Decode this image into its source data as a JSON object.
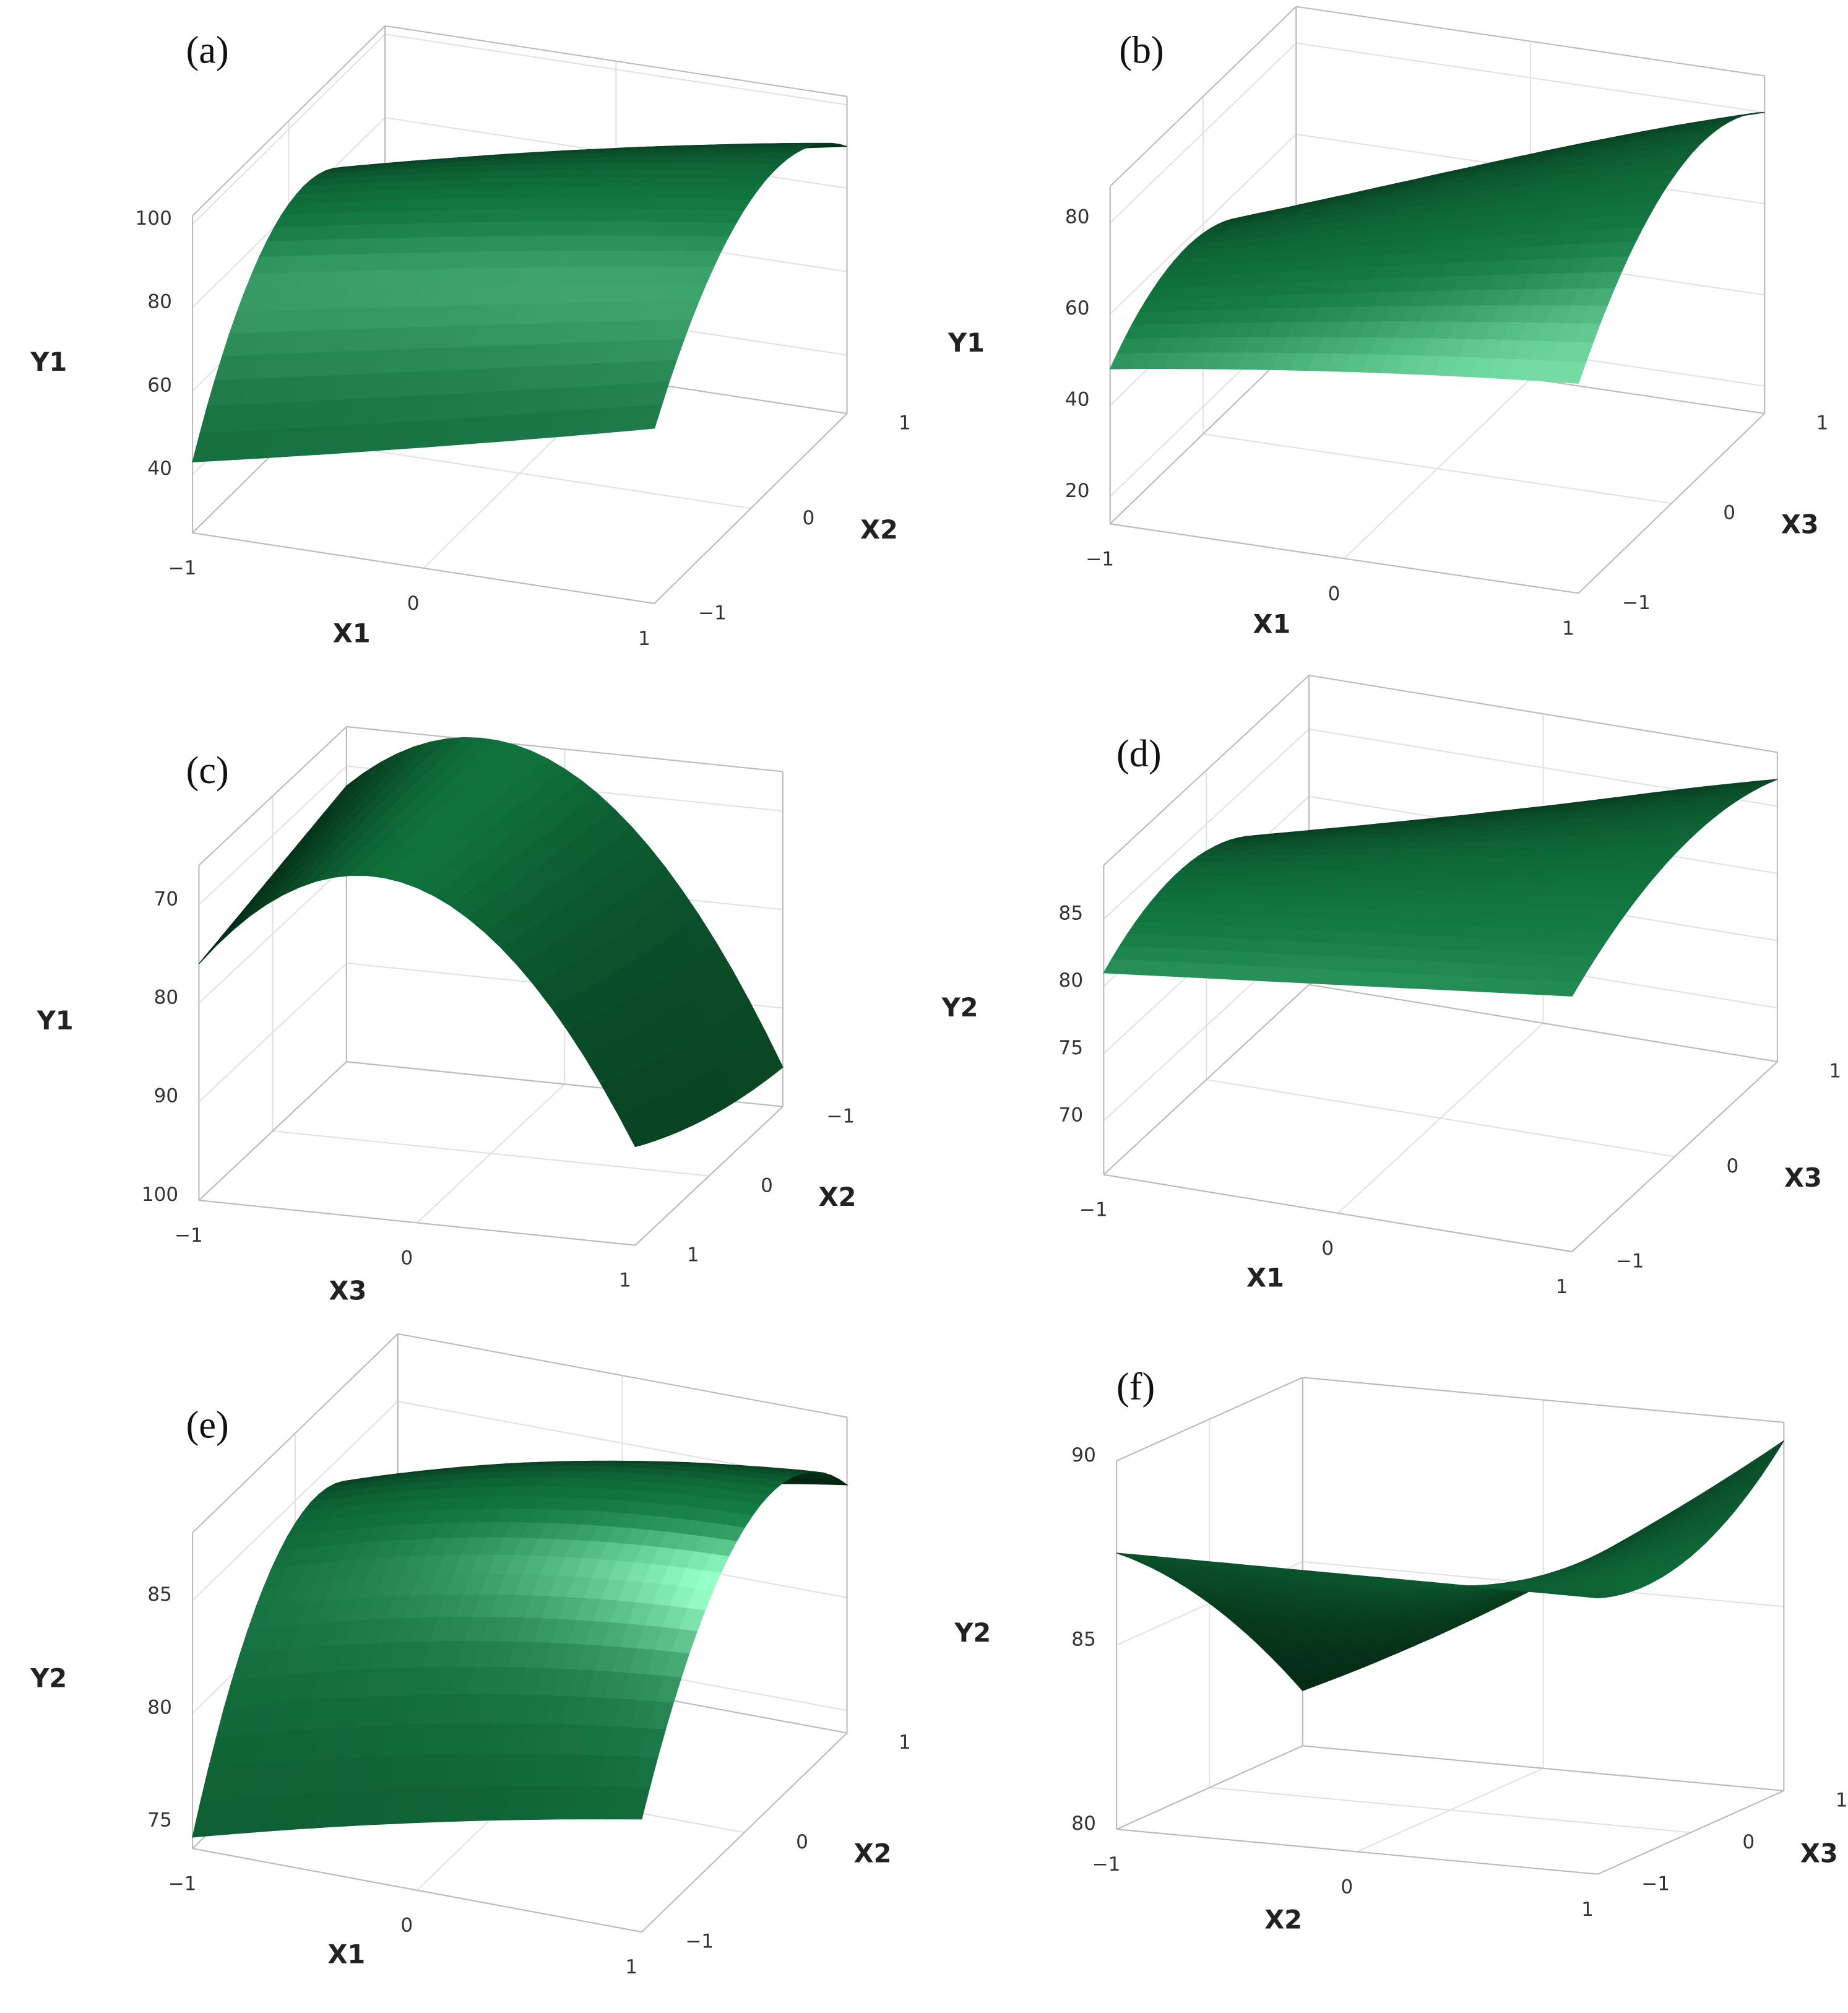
{
  "chart_data": [
    {
      "type": "surface",
      "panel_label": "(a)",
      "x_label": "X1",
      "y_label": "X2",
      "z_label": "Y1",
      "color": "#14884a",
      "xlim": [
        -1,
        1
      ],
      "ylim": [
        -1,
        1
      ],
      "zlim": [
        26,
        102
      ],
      "xticks": [
        {
          "value": -1,
          "label": "−1"
        },
        0,
        1
      ],
      "yticks": [
        {
          "value": -1,
          "label": "−1"
        },
        0,
        1
      ],
      "zticks": [
        40,
        60,
        80,
        100
      ],
      "x": [
        -1,
        0,
        1
      ],
      "y": [
        -1,
        0,
        1
      ],
      "z": [
        [
          43,
          82,
          62
        ],
        [
          55,
          92,
          78
        ],
        [
          68,
          100,
          90
        ]
      ]
    },
    {
      "type": "surface",
      "panel_label": "(b)",
      "x_label": "X1",
      "y_label": "X3",
      "z_label": "Y1",
      "color": "#14884a",
      "xlim": [
        -1,
        1
      ],
      "ylim": [
        -1,
        1
      ],
      "zlim": [
        14,
        88
      ],
      "xticks": [
        {
          "value": -1,
          "label": "−1"
        },
        0,
        1
      ],
      "yticks": [
        {
          "value": -1,
          "label": "−1"
        },
        0,
        1
      ],
      "zticks": [
        20,
        40,
        60,
        80
      ],
      "x": [
        -1,
        0,
        1
      ],
      "y": [
        -1,
        0,
        1
      ],
      "z": [
        [
          48,
          58,
          38
        ],
        [
          55,
          72,
          62
        ],
        [
          60,
          85,
          80
        ]
      ]
    },
    {
      "type": "surface",
      "panel_label": "(c)",
      "x_label": "X3",
      "y_label": "X2",
      "z_label": "Y1",
      "color": "#14884a",
      "xlim": [
        -1,
        1
      ],
      "ylim": [
        1,
        -1
      ],
      "zlim": [
        100,
        66
      ],
      "xticks": [
        {
          "value": -1,
          "label": "−1"
        },
        0,
        1
      ],
      "yticks": [
        {
          "value": -1,
          "label": "−1"
        },
        0,
        1
      ],
      "zticks": [
        70,
        80,
        90,
        100
      ],
      "x": [
        -1,
        0,
        1
      ],
      "y": [
        -1,
        0,
        1
      ],
      "z": [
        [
          72,
          74,
          76
        ],
        [
          68,
          67,
          66
        ],
        [
          96,
          94,
          90
        ]
      ]
    },
    {
      "type": "surface",
      "panel_label": "(d)",
      "x_label": "X1",
      "y_label": "X3",
      "z_label": "Y2",
      "color": "#14884a",
      "xlim": [
        -1,
        1
      ],
      "ylim": [
        -1,
        1
      ],
      "zlim": [
        66,
        89
      ],
      "xticks": [
        {
          "value": -1,
          "label": "−1"
        },
        0,
        1
      ],
      "yticks": [
        {
          "value": -1,
          "label": "−1"
        },
        0,
        1
      ],
      "zticks": [
        70,
        75,
        80,
        85
      ],
      "x": [
        -1,
        0,
        1
      ],
      "y": [
        -1,
        0,
        1
      ],
      "z": [
        [
          81,
          83,
          76
        ],
        [
          83,
          86,
          82
        ],
        [
          85,
          88.5,
          87
        ]
      ]
    },
    {
      "type": "surface",
      "panel_label": "(e)",
      "x_label": "X1",
      "y_label": "X2",
      "z_label": "Y2",
      "color": "#14884a",
      "xlim": [
        -1,
        1
      ],
      "ylim": [
        -1,
        1
      ],
      "zlim": [
        74,
        88
      ],
      "xticks": [
        {
          "value": -1,
          "label": "−1"
        },
        0,
        1
      ],
      "yticks": [
        {
          "value": -1,
          "label": "−1"
        },
        0,
        1
      ],
      "zticks": [
        75,
        80,
        85
      ],
      "x": [
        -1,
        0,
        1
      ],
      "y": [
        -1,
        0,
        1
      ],
      "z": [
        [
          74.5,
          84,
          80
        ],
        [
          77,
          86.5,
          83
        ],
        [
          79,
          87.5,
          85
        ]
      ]
    },
    {
      "type": "surface",
      "panel_label": "(f)",
      "x_label": "X2",
      "y_label": "X3",
      "z_label": "Y2",
      "color": "#14884a",
      "xlim": [
        -1,
        1
      ],
      "ylim": [
        -1,
        1
      ],
      "zlim": [
        80,
        90
      ],
      "xticks": [
        {
          "value": -1,
          "label": "−1"
        },
        0,
        1
      ],
      "yticks": [
        {
          "value": -1,
          "label": "−1"
        },
        0,
        1
      ],
      "zticks": [
        80,
        85,
        90
      ],
      "x": [
        -1,
        0,
        1
      ],
      "y": [
        -1,
        0,
        1
      ],
      "z": [
        [
          87.5,
          85,
          81.5
        ],
        [
          87.5,
          86,
          85
        ],
        [
          87.5,
          87.5,
          89.5
        ]
      ]
    }
  ]
}
